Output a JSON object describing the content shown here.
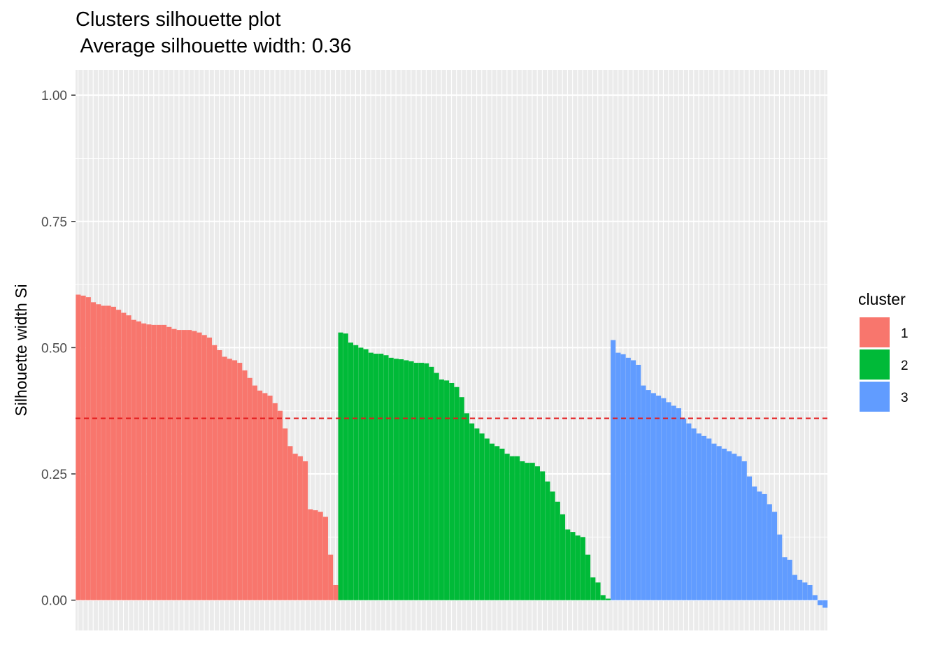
{
  "chart_data": {
    "type": "bar",
    "title": "Clusters silhouette plot",
    "subtitle": " Average silhouette width: 0.36",
    "xlabel": "",
    "ylabel": "Silhouette width Si",
    "ylim": [
      -0.06,
      1.05
    ],
    "yticks": [
      "0.00",
      "0.25",
      "0.50",
      "0.75",
      "1.00"
    ],
    "average_silhouette": 0.36,
    "legend": {
      "title": "cluster",
      "placement": "right"
    },
    "grid": true,
    "colors": {
      "1": "#F8766D",
      "2": "#00BA38",
      "3": "#619CFF",
      "avg_line": "#E41A1C",
      "panel": "#EBEBEB",
      "grid": "#FFFFFF"
    },
    "series": [
      {
        "name": "1",
        "values": [
          0.605,
          0.603,
          0.6,
          0.59,
          0.586,
          0.583,
          0.583,
          0.581,
          0.575,
          0.569,
          0.564,
          0.555,
          0.552,
          0.548,
          0.546,
          0.545,
          0.545,
          0.545,
          0.541,
          0.537,
          0.535,
          0.535,
          0.535,
          0.533,
          0.53,
          0.525,
          0.52,
          0.505,
          0.495,
          0.482,
          0.478,
          0.475,
          0.47,
          0.455,
          0.44,
          0.425,
          0.415,
          0.41,
          0.405,
          0.39,
          0.375,
          0.34,
          0.305,
          0.29,
          0.285,
          0.275,
          0.18,
          0.178,
          0.175,
          0.165,
          0.09,
          0.03
        ]
      },
      {
        "name": "2",
        "values": [
          0.53,
          0.528,
          0.51,
          0.505,
          0.5,
          0.497,
          0.49,
          0.488,
          0.488,
          0.485,
          0.48,
          0.478,
          0.477,
          0.475,
          0.473,
          0.47,
          0.47,
          0.469,
          0.462,
          0.45,
          0.437,
          0.435,
          0.43,
          0.422,
          0.402,
          0.37,
          0.35,
          0.34,
          0.33,
          0.32,
          0.31,
          0.305,
          0.3,
          0.29,
          0.285,
          0.285,
          0.275,
          0.272,
          0.272,
          0.265,
          0.255,
          0.235,
          0.215,
          0.195,
          0.17,
          0.14,
          0.135,
          0.128,
          0.125,
          0.09,
          0.045,
          0.035,
          0.01,
          0.003
        ]
      },
      {
        "name": "3",
        "values": [
          0.515,
          0.49,
          0.487,
          0.48,
          0.475,
          0.466,
          0.425,
          0.416,
          0.41,
          0.405,
          0.4,
          0.392,
          0.385,
          0.38,
          0.36,
          0.35,
          0.34,
          0.33,
          0.325,
          0.32,
          0.31,
          0.305,
          0.3,
          0.295,
          0.29,
          0.285,
          0.275,
          0.245,
          0.225,
          0.215,
          0.21,
          0.19,
          0.175,
          0.13,
          0.085,
          0.08,
          0.05,
          0.04,
          0.035,
          0.03,
          0.01,
          -0.01,
          -0.015
        ]
      }
    ]
  }
}
